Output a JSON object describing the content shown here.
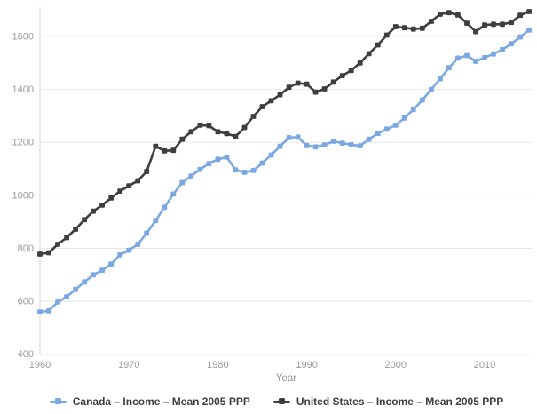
{
  "chart_data": {
    "type": "line",
    "x": [
      1960,
      1961,
      1962,
      1963,
      1964,
      1965,
      1966,
      1967,
      1968,
      1969,
      1970,
      1971,
      1972,
      1973,
      1974,
      1975,
      1976,
      1977,
      1978,
      1979,
      1980,
      1981,
      1982,
      1983,
      1984,
      1985,
      1986,
      1987,
      1988,
      1989,
      1990,
      1991,
      1992,
      1993,
      1994,
      1995,
      1996,
      1997,
      1998,
      1999,
      2000,
      2001,
      2002,
      2003,
      2004,
      2005,
      2006,
      2007,
      2008,
      2009,
      2010,
      2011,
      2012,
      2013,
      2014,
      2015
    ],
    "series": [
      {
        "name": "Canada – Income – Mean 2005 PPP",
        "color": "#7CA8E2",
        "marker": "square",
        "values": [
          560,
          564,
          597,
          617,
          645,
          673,
          700,
          717,
          741,
          775,
          793,
          815,
          857,
          905,
          955,
          1005,
          1048,
          1073,
          1098,
          1120,
          1136,
          1144,
          1096,
          1087,
          1094,
          1122,
          1152,
          1185,
          1218,
          1220,
          1188,
          1183,
          1190,
          1204,
          1197,
          1191,
          1187,
          1212,
          1234,
          1250,
          1265,
          1292,
          1324,
          1360,
          1400,
          1440,
          1482,
          1518,
          1528,
          1506,
          1520,
          1534,
          1550,
          1572,
          1598,
          1624
        ]
      },
      {
        "name": "United States – Income – Mean 2005 PPP",
        "color": "#3E3E3E",
        "marker": "square",
        "values": [
          778,
          783,
          815,
          840,
          872,
          908,
          940,
          963,
          990,
          1016,
          1036,
          1055,
          1090,
          1185,
          1168,
          1170,
          1212,
          1240,
          1265,
          1263,
          1240,
          1233,
          1222,
          1256,
          1298,
          1335,
          1357,
          1380,
          1408,
          1424,
          1420,
          1390,
          1402,
          1428,
          1452,
          1472,
          1500,
          1535,
          1568,
          1605,
          1637,
          1633,
          1628,
          1631,
          1657,
          1684,
          1690,
          1681,
          1650,
          1618,
          1643,
          1646,
          1646,
          1653,
          1680,
          1694
        ]
      }
    ],
    "title": "",
    "xlabel": "Year",
    "ylabel": "",
    "xlim": [
      1960,
      2015
    ],
    "ylim": [
      400,
      1700
    ],
    "y_ticks": [
      400,
      600,
      800,
      1000,
      1200,
      1400,
      1600
    ],
    "x_ticks": [
      1960,
      1970,
      1980,
      1990,
      2000,
      2010
    ],
    "grid": "horizontal",
    "legend_position": "bottom",
    "colors": {
      "gridline": "#e8e8e8",
      "axis_line": "#d4d4d4",
      "tick_text": "#9a9a9a",
      "axis_label_text": "#8f8f8f",
      "legend_text": "#3e3e3e",
      "background": "#ffffff"
    }
  },
  "legend": {
    "items": [
      {
        "label": "Canada – Income – Mean 2005 PPP",
        "color": "#7CA8E2"
      },
      {
        "label": "United States – Income – Mean 2005 PPP",
        "color": "#3E3E3E"
      }
    ]
  }
}
